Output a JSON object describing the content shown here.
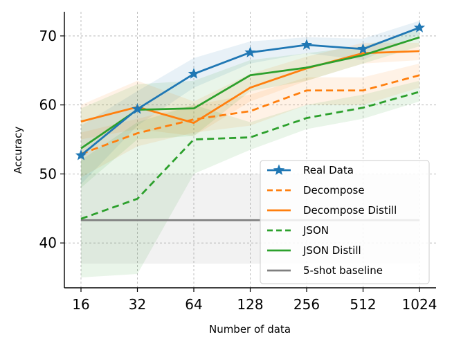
{
  "chart_data": {
    "type": "line",
    "title": "",
    "xlabel": "Number of data",
    "ylabel": "Accuracy",
    "x_scale": "log2",
    "categories": [
      "16",
      "32",
      "64",
      "128",
      "256",
      "512",
      "1024"
    ],
    "x": [
      16,
      32,
      64,
      128,
      256,
      512,
      1024
    ],
    "ylim": [
      33.5,
      73.5
    ],
    "yticks": [
      40,
      50,
      60,
      70
    ],
    "grid": true,
    "legend_position": "lower-right",
    "series": [
      {
        "name": "Real Data",
        "color": "#1f77b4",
        "dash": "solid",
        "marker": "star",
        "values": [
          52.7,
          59.4,
          64.5,
          67.6,
          68.7,
          68.1,
          71.2
        ],
        "band_lower": [
          48.5,
          57.0,
          62.5,
          66.0,
          67.5,
          66.5,
          70.2
        ],
        "band_upper": [
          57.0,
          62.0,
          66.8,
          69.2,
          69.8,
          69.6,
          72.2
        ]
      },
      {
        "name": "Decompose",
        "color": "#ff7f0e",
        "dash": "dashed",
        "marker": "none",
        "values": [
          52.9,
          55.9,
          57.9,
          59.1,
          62.1,
          62.1,
          64.3
        ],
        "band_lower": [
          49.5,
          54.0,
          56.0,
          57.0,
          60.0,
          60.0,
          62.5
        ],
        "band_upper": [
          56.0,
          58.0,
          60.0,
          61.5,
          64.0,
          64.0,
          66.0
        ]
      },
      {
        "name": "Decompose Distill",
        "color": "#ff7f0e",
        "dash": "solid",
        "marker": "none",
        "values": [
          57.6,
          59.7,
          57.4,
          62.5,
          65.3,
          67.5,
          67.8
        ],
        "band_lower": [
          55.0,
          56.5,
          55.5,
          60.5,
          63.5,
          66.0,
          66.5
        ],
        "band_upper": [
          60.0,
          63.5,
          60.5,
          64.5,
          67.0,
          69.0,
          69.0
        ]
      },
      {
        "name": "JSON",
        "color": "#2ca02c",
        "dash": "dashed",
        "marker": "none",
        "values": [
          43.5,
          46.4,
          55.0,
          55.3,
          58.1,
          59.6,
          61.9
        ],
        "band_lower": [
          35.0,
          35.5,
          50.0,
          53.5,
          56.5,
          58.0,
          60.5
        ],
        "band_upper": [
          52.0,
          57.5,
          60.0,
          57.5,
          60.0,
          61.5,
          63.5
        ]
      },
      {
        "name": "JSON Distill",
        "color": "#2ca02c",
        "dash": "solid",
        "marker": "none",
        "values": [
          53.7,
          59.3,
          59.5,
          64.3,
          65.4,
          67.2,
          69.8
        ],
        "band_lower": [
          48.0,
          55.0,
          55.5,
          62.0,
          63.5,
          66.0,
          68.5
        ],
        "band_upper": [
          59.5,
          63.0,
          63.5,
          66.5,
          67.5,
          68.5,
          71.0
        ]
      },
      {
        "name": "5-shot baseline",
        "color": "#7f7f7f",
        "dash": "solid",
        "marker": "none",
        "values": [
          43.3,
          43.3,
          43.3,
          43.3,
          43.3,
          43.3,
          43.3
        ],
        "band_lower": [
          37.0,
          37.0,
          37.0,
          37.0,
          37.0,
          37.0,
          37.0
        ],
        "band_upper": [
          50.0,
          50.0,
          50.0,
          50.0,
          50.0,
          50.0,
          50.0
        ]
      }
    ]
  }
}
